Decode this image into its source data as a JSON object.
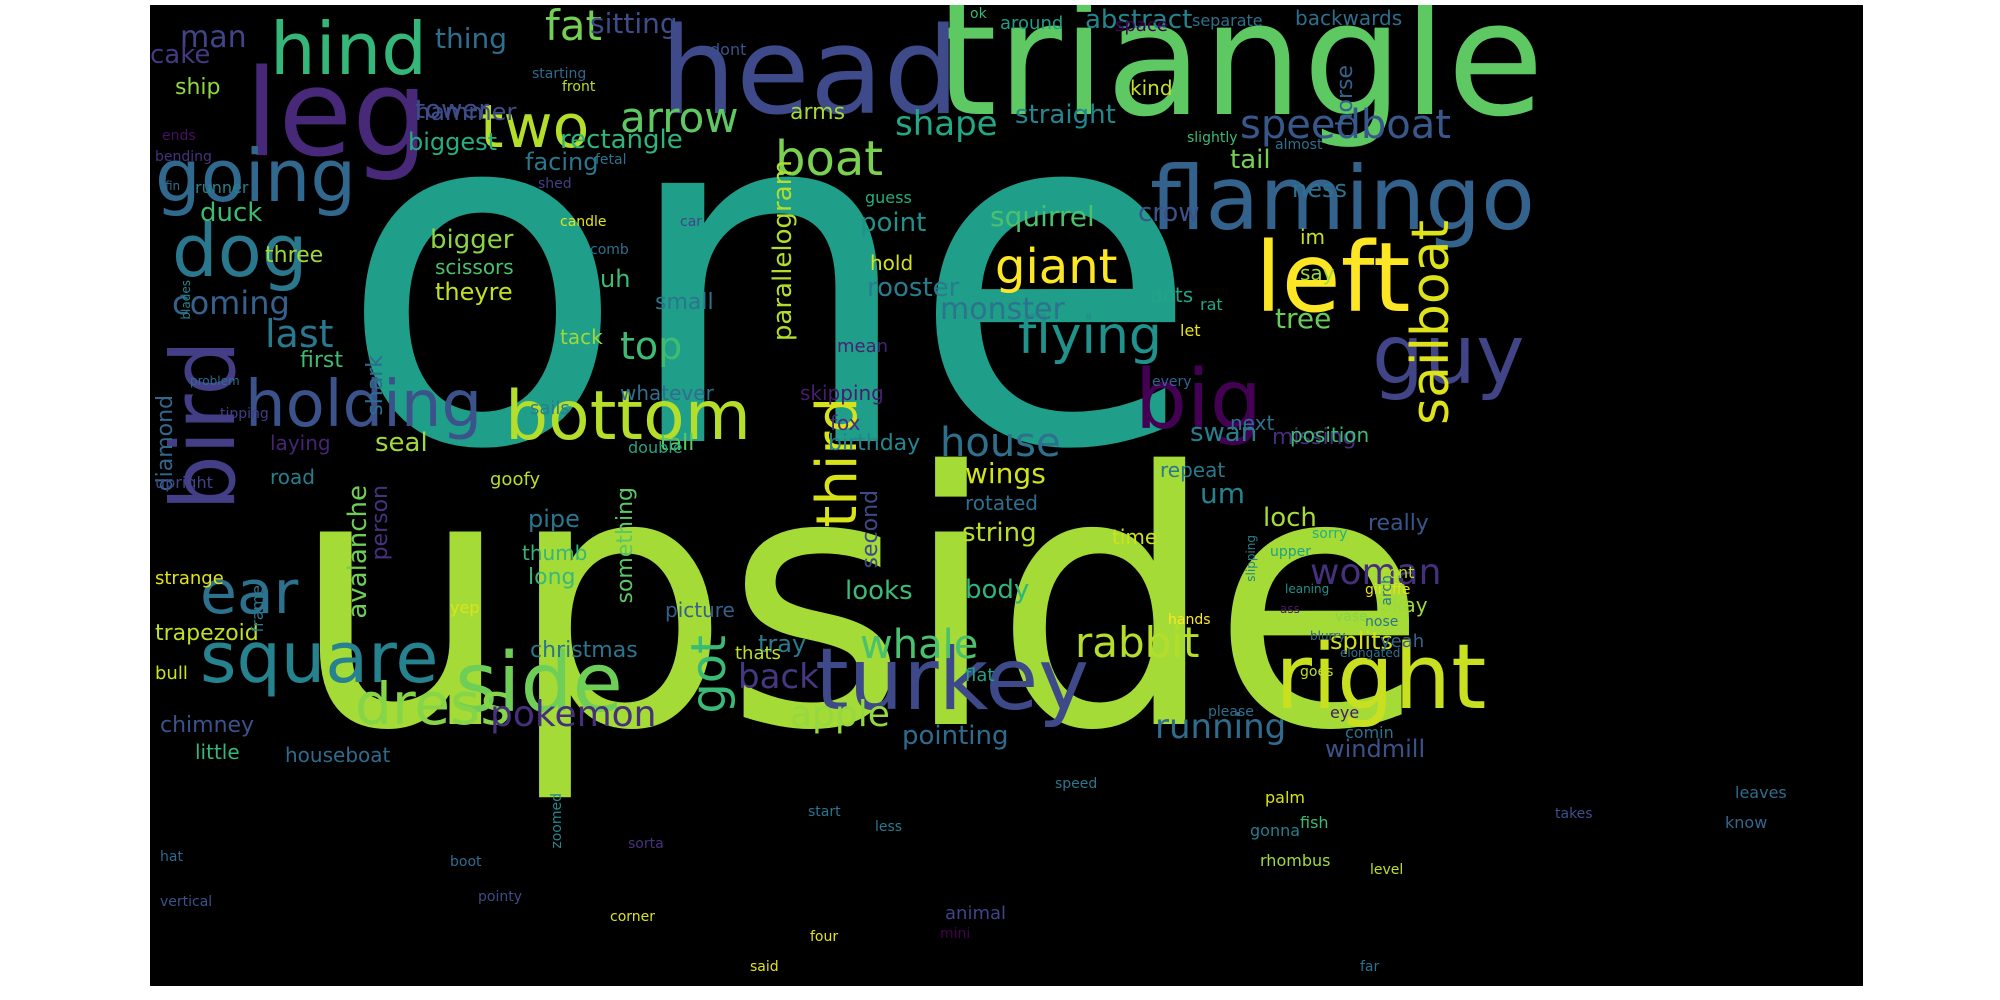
{
  "background": "#000000",
  "words": [
    {
      "text": "one",
      "color": "#1f9e89"
    },
    {
      "text": "upside",
      "color": "#a5db36"
    },
    {
      "text": "triangle",
      "color": "#5ec962"
    },
    {
      "text": "head",
      "color": "#3e4a89"
    },
    {
      "text": "leg",
      "color": "#482878"
    },
    {
      "text": "hind",
      "color": "#35b779"
    },
    {
      "text": "flamingo",
      "color": "#33638d"
    },
    {
      "text": "left",
      "color": "#fde725"
    },
    {
      "text": "bird",
      "color": "#433e85"
    },
    {
      "text": "dog",
      "color": "#2a788e"
    },
    {
      "text": "going",
      "color": "#31688e"
    },
    {
      "text": "guy",
      "color": "#414487"
    },
    {
      "text": "big",
      "color": "#440154"
    },
    {
      "text": "holding",
      "color": "#3b528b"
    },
    {
      "text": "bottom",
      "color": "#b5de2b"
    },
    {
      "text": "square",
      "color": "#26828e"
    },
    {
      "text": "side",
      "color": "#6ece58"
    },
    {
      "text": "turkey",
      "color": "#3e4989"
    },
    {
      "text": "right",
      "color": "#c8e020"
    },
    {
      "text": "dress",
      "color": "#86d549"
    },
    {
      "text": "ear",
      "color": "#2c728e"
    },
    {
      "text": "two",
      "color": "#b5de2b"
    },
    {
      "text": "third",
      "color": "#d8e219"
    },
    {
      "text": "sailboat",
      "color": "#dde318"
    },
    {
      "text": "giant",
      "color": "#fde725"
    },
    {
      "text": "boat",
      "color": "#7ad151"
    },
    {
      "text": "speedboat",
      "color": "#38588c"
    },
    {
      "text": "flying",
      "color": "#21918c"
    },
    {
      "text": "arrow",
      "color": "#5ec962"
    },
    {
      "text": "fat",
      "color": "#74d055"
    },
    {
      "text": "got",
      "color": "#3aba76"
    },
    {
      "text": "rabbit",
      "color": "#b5de2b"
    },
    {
      "text": "whale",
      "color": "#4ac16d"
    },
    {
      "text": "house",
      "color": "#2d718e"
    },
    {
      "text": "pokemon",
      "color": "#472f7d"
    },
    {
      "text": "apple",
      "color": "#95d840"
    },
    {
      "text": "back",
      "color": "#453781"
    },
    {
      "text": "woman",
      "color": "#46307e"
    },
    {
      "text": "running",
      "color": "#2f6c8e"
    },
    {
      "text": "top",
      "color": "#3fbc73"
    },
    {
      "text": "last",
      "color": "#2a788e"
    },
    {
      "text": "coming",
      "color": "#34618d"
    },
    {
      "text": "shape",
      "color": "#22a884"
    },
    {
      "text": "tower",
      "color": "#3e4a89"
    },
    {
      "text": "monster",
      "color": "#2c738e"
    },
    {
      "text": "squirrel",
      "color": "#4ac16d"
    },
    {
      "text": "rooster",
      "color": "#287c8e"
    },
    {
      "text": "man",
      "color": "#414487"
    },
    {
      "text": "cake",
      "color": "#443a83"
    },
    {
      "text": "thing",
      "color": "#2e6f8e"
    },
    {
      "text": "sitting",
      "color": "#3e4c8a"
    },
    {
      "text": "abstract",
      "color": "#25848e"
    },
    {
      "text": "backwards",
      "color": "#2e6e8e"
    },
    {
      "text": "ship",
      "color": "#90d743"
    },
    {
      "text": "biggest",
      "color": "#26ad81"
    },
    {
      "text": "hammer",
      "color": "#3d4d8a"
    },
    {
      "text": "rectangle",
      "color": "#2fb47c"
    },
    {
      "text": "straight",
      "color": "#23888e"
    },
    {
      "text": "facing",
      "color": "#2a778e"
    },
    {
      "text": "tail",
      "color": "#75d054"
    },
    {
      "text": "ness",
      "color": "#2c718e"
    },
    {
      "text": "duck",
      "color": "#3bbb75"
    },
    {
      "text": "three",
      "color": "#9dd93b"
    },
    {
      "text": "crow",
      "color": "#3b528b"
    },
    {
      "text": "bigger",
      "color": "#8bd646"
    },
    {
      "text": "point",
      "color": "#21918c"
    },
    {
      "text": "scissors",
      "color": "#4ac16d"
    },
    {
      "text": "theyre",
      "color": "#c2df23"
    },
    {
      "text": "uh",
      "color": "#3dbc74"
    },
    {
      "text": "small",
      "color": "#2b758e"
    },
    {
      "text": "seal",
      "color": "#a0da39"
    },
    {
      "text": "wings",
      "color": "#d2e21b"
    },
    {
      "text": "swan",
      "color": "#277f8e"
    },
    {
      "text": "missing",
      "color": "#472d7b"
    },
    {
      "text": "tree",
      "color": "#67cc5c"
    },
    {
      "text": "first",
      "color": "#3fbc73"
    },
    {
      "text": "um",
      "color": "#26828e"
    },
    {
      "text": "loch",
      "color": "#a8db34"
    },
    {
      "text": "really",
      "color": "#39568c"
    },
    {
      "text": "birthday",
      "color": "#24878e"
    },
    {
      "text": "string",
      "color": "#b8de29"
    },
    {
      "text": "pipe",
      "color": "#2a768e"
    },
    {
      "text": "thumb",
      "color": "#33b67a"
    },
    {
      "text": "long",
      "color": "#38b977"
    },
    {
      "text": "christmas",
      "color": "#2b758e"
    },
    {
      "text": "tray",
      "color": "#297a8e"
    },
    {
      "text": "looks",
      "color": "#3cbc74"
    },
    {
      "text": "body",
      "color": "#2fb47c"
    },
    {
      "text": "trapezoid",
      "color": "#c0df25"
    },
    {
      "text": "chimney",
      "color": "#3b528b"
    },
    {
      "text": "houseboat",
      "color": "#2f6b8e"
    },
    {
      "text": "little",
      "color": "#35b779"
    },
    {
      "text": "splits",
      "color": "#d0e11c"
    },
    {
      "text": "okay",
      "color": "#9bd93c"
    },
    {
      "text": "windmill",
      "color": "#3b528b"
    },
    {
      "text": "pointing",
      "color": "#2f6b8e"
    },
    {
      "text": "time",
      "color": "#cde11d"
    },
    {
      "text": "something",
      "color": "#5ac864"
    },
    {
      "text": "picture",
      "color": "#34608d"
    },
    {
      "text": "tack",
      "color": "#9dd93b"
    },
    {
      "text": "laying",
      "color": "#482475"
    },
    {
      "text": "road",
      "color": "#277f8e"
    },
    {
      "text": "diamond",
      "color": "#31688e"
    },
    {
      "text": "avalanche",
      "color": "#6ece58"
    },
    {
      "text": "person",
      "color": "#46327e"
    },
    {
      "text": "shark",
      "color": "#2f6c8e"
    },
    {
      "text": "parallelogram",
      "color": "#b2dd2d"
    },
    {
      "text": "second",
      "color": "#3e4a89"
    },
    {
      "text": "rotated",
      "color": "#2e6f8e"
    },
    {
      "text": "tall",
      "color": "#5cc863"
    },
    {
      "text": "fox",
      "color": "#472d7b"
    },
    {
      "text": "skipping",
      "color": "#481c6e"
    },
    {
      "text": "whatever",
      "color": "#2e6e8e"
    },
    {
      "text": "arms",
      "color": "#a2da37"
    },
    {
      "text": "kind",
      "color": "#c5e021"
    },
    {
      "text": "horse",
      "color": "#33628d"
    },
    {
      "text": "im",
      "color": "#c8e020"
    },
    {
      "text": "say",
      "color": "#9bd93c"
    },
    {
      "text": "dots",
      "color": "#20a486"
    },
    {
      "text": "next",
      "color": "#2e6e8e"
    },
    {
      "text": "position",
      "color": "#3fbc73"
    },
    {
      "text": "repeat",
      "color": "#2a788e"
    },
    {
      "text": "hold",
      "color": "#d5e21a"
    },
    {
      "text": "mean",
      "color": "#482173"
    },
    {
      "text": "sails",
      "color": "#287d8e"
    },
    {
      "text": "double",
      "color": "#21a585"
    },
    {
      "text": "goofy",
      "color": "#bade28"
    },
    {
      "text": "upright",
      "color": "#414487"
    },
    {
      "text": "strange",
      "color": "#e2e418"
    },
    {
      "text": "frame",
      "color": "#2a778e"
    },
    {
      "text": "yep",
      "color": "#dde318"
    },
    {
      "text": "bull",
      "color": "#cae11f"
    },
    {
      "text": "thats",
      "color": "#c0df25"
    },
    {
      "text": "flat",
      "color": "#20a386"
    },
    {
      "text": "comin",
      "color": "#2c728e"
    },
    {
      "text": "please",
      "color": "#2d708e"
    },
    {
      "text": "palm",
      "color": "#dae319"
    },
    {
      "text": "eye",
      "color": "#481769"
    },
    {
      "text": "goes",
      "color": "#c2df23"
    },
    {
      "text": "nose",
      "color": "#2b748e"
    },
    {
      "text": "yeah",
      "color": "#32648e"
    },
    {
      "text": "ront",
      "color": "#bade28"
    },
    {
      "text": "giraffe",
      "color": "#e5e419"
    },
    {
      "text": "arch",
      "color": "#2a768e"
    },
    {
      "text": "sorry",
      "color": "#27ad81"
    },
    {
      "text": "vase",
      "color": "#84d44b"
    },
    {
      "text": "ass",
      "color": "#48186a"
    },
    {
      "text": "elongated",
      "color": "#2d718e"
    },
    {
      "text": "blurry",
      "color": "#31688e"
    },
    {
      "text": "slipping",
      "color": "#26828e"
    },
    {
      "text": "leaning",
      "color": "#20928c"
    },
    {
      "text": "hands",
      "color": "#fde725"
    },
    {
      "text": "upper",
      "color": "#1fa088"
    },
    {
      "text": "rat",
      "color": "#22a884"
    },
    {
      "text": "let",
      "color": "#e7e419"
    },
    {
      "text": "every",
      "color": "#32658e"
    },
    {
      "text": "guess",
      "color": "#26ad81"
    },
    {
      "text": "car",
      "color": "#404688"
    },
    {
      "text": "comb",
      "color": "#2d708e"
    },
    {
      "text": "candle",
      "color": "#e1e418"
    },
    {
      "text": "shed",
      "color": "#433e85"
    },
    {
      "text": "runner",
      "color": "#26828e"
    },
    {
      "text": "fetal",
      "color": "#2d708e"
    },
    {
      "text": "slightly",
      "color": "#3bbb75"
    },
    {
      "text": "almost",
      "color": "#2c718e"
    },
    {
      "text": "ok",
      "color": "#3aba76"
    },
    {
      "text": "around",
      "color": "#1f9f88"
    },
    {
      "text": "space",
      "color": "#440154"
    },
    {
      "text": "separate",
      "color": "#2d708e"
    },
    {
      "text": "dont",
      "color": "#3b528b"
    },
    {
      "text": "starting",
      "color": "#31688e"
    },
    {
      "text": "front",
      "color": "#bade28"
    },
    {
      "text": "ends",
      "color": "#471063"
    },
    {
      "text": "bending",
      "color": "#46337f"
    },
    {
      "text": "fin",
      "color": "#2e6f8e"
    },
    {
      "text": "blades",
      "color": "#24868e"
    },
    {
      "text": "problem",
      "color": "#2f6c8e"
    },
    {
      "text": "tipping",
      "color": "#433e85"
    },
    {
      "text": "speed",
      "color": "#2a788e"
    },
    {
      "text": "zoomed",
      "color": "#24878e"
    },
    {
      "text": "start",
      "color": "#2b758e"
    },
    {
      "text": "less",
      "color": "#297a8e"
    },
    {
      "text": "sorta",
      "color": "#46327e"
    },
    {
      "text": "hat",
      "color": "#31688e"
    },
    {
      "text": "vertical",
      "color": "#3b528b"
    },
    {
      "text": "boot",
      "color": "#2e6e8e"
    },
    {
      "text": "pointy",
      "color": "#3e4a89"
    },
    {
      "text": "corner",
      "color": "#dde318"
    },
    {
      "text": "four",
      "color": "#e5e419"
    },
    {
      "text": "said",
      "color": "#dde318"
    },
    {
      "text": "mini",
      "color": "#440154"
    },
    {
      "text": "animal",
      "color": "#414487"
    },
    {
      "text": "gonna",
      "color": "#287d8e"
    },
    {
      "text": "rhombus",
      "color": "#a0da39"
    },
    {
      "text": "fish",
      "color": "#3bbb75"
    },
    {
      "text": "level",
      "color": "#c0df25"
    },
    {
      "text": "far",
      "color": "#2c718e"
    },
    {
      "text": "takes",
      "color": "#3b528b"
    },
    {
      "text": "know",
      "color": "#31688e"
    },
    {
      "text": "leaves",
      "color": "#2f6c8e"
    }
  ]
}
